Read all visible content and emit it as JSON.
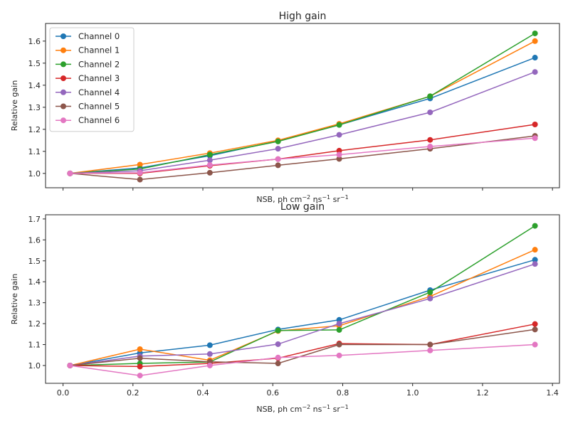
{
  "chart_data": [
    {
      "type": "line",
      "title": "High gain",
      "xlabel": "NSB, ph cm⁻² ns⁻¹ sr⁻¹",
      "ylabel": "Relative gain",
      "xlim": [
        -0.05,
        1.42
      ],
      "ylim": [
        0.935,
        1.68
      ],
      "xticks": [
        0.0,
        0.2,
        0.4,
        0.6,
        0.8,
        1.0,
        1.2,
        1.4
      ],
      "xtick_labels_shown": false,
      "yticks": [
        1.0,
        1.1,
        1.2,
        1.3,
        1.4,
        1.5,
        1.6
      ],
      "ytick_labels": [
        "1.0",
        "1.1",
        "1.2",
        "1.3",
        "1.4",
        "1.5",
        "1.6"
      ],
      "grid": false,
      "legend_position": "top-left",
      "x": [
        0.02,
        0.22,
        0.42,
        0.615,
        0.79,
        1.05,
        1.35
      ],
      "series": [
        {
          "name": "Channel 0",
          "color": "#1f77b4",
          "values": [
            1.0,
            1.025,
            1.08,
            1.147,
            1.22,
            1.34,
            1.525
          ]
        },
        {
          "name": "Channel 1",
          "color": "#ff7f0e",
          "values": [
            1.0,
            1.04,
            1.092,
            1.15,
            1.225,
            1.35,
            1.6
          ]
        },
        {
          "name": "Channel 2",
          "color": "#2ca02c",
          "values": [
            1.0,
            1.02,
            1.085,
            1.145,
            1.22,
            1.35,
            1.635
          ]
        },
        {
          "name": "Channel 3",
          "color": "#d62728",
          "values": [
            1.0,
            1.0,
            1.035,
            1.065,
            1.103,
            1.152,
            1.222
          ]
        },
        {
          "name": "Channel 4",
          "color": "#9467bd",
          "values": [
            1.0,
            1.012,
            1.06,
            1.112,
            1.175,
            1.277,
            1.46
          ]
        },
        {
          "name": "Channel 5",
          "color": "#8c564b",
          "values": [
            1.0,
            0.972,
            1.003,
            1.037,
            1.066,
            1.112,
            1.17
          ]
        },
        {
          "name": "Channel 6",
          "color": "#e377c2",
          "values": [
            1.0,
            1.003,
            1.038,
            1.065,
            1.085,
            1.122,
            1.16
          ]
        }
      ]
    },
    {
      "type": "line",
      "title": "Low gain",
      "xlabel": "NSB, ph cm⁻² ns⁻¹ sr⁻¹",
      "ylabel": "Relative gain",
      "xlim": [
        -0.05,
        1.42
      ],
      "ylim": [
        0.915,
        1.72
      ],
      "xticks": [
        0.0,
        0.2,
        0.4,
        0.6,
        0.8,
        1.0,
        1.2,
        1.4
      ],
      "xtick_labels": [
        "0.0",
        "0.2",
        "0.4",
        "0.6",
        "0.8",
        "1.0",
        "1.2",
        "1.4"
      ],
      "yticks": [
        1.0,
        1.1,
        1.2,
        1.3,
        1.4,
        1.5,
        1.6,
        1.7
      ],
      "ytick_labels": [
        "1.0",
        "1.1",
        "1.2",
        "1.3",
        "1.4",
        "1.5",
        "1.6",
        "1.7"
      ],
      "grid": false,
      "x": [
        0.02,
        0.22,
        0.42,
        0.615,
        0.79,
        1.05,
        1.35
      ],
      "series": [
        {
          "name": "Channel 0",
          "color": "#1f77b4",
          "values": [
            1.0,
            1.06,
            1.097,
            1.172,
            1.218,
            1.36,
            1.505
          ]
        },
        {
          "name": "Channel 1",
          "color": "#ff7f0e",
          "values": [
            1.0,
            1.078,
            1.025,
            1.165,
            1.19,
            1.33,
            1.553
          ]
        },
        {
          "name": "Channel 2",
          "color": "#2ca02c",
          "values": [
            1.0,
            1.01,
            1.017,
            1.167,
            1.17,
            1.35,
            1.667
          ]
        },
        {
          "name": "Channel 3",
          "color": "#d62728",
          "values": [
            1.0,
            0.995,
            1.01,
            1.035,
            1.105,
            1.1,
            1.198
          ]
        },
        {
          "name": "Channel 4",
          "color": "#9467bd",
          "values": [
            1.0,
            1.045,
            1.055,
            1.102,
            1.2,
            1.32,
            1.485
          ]
        },
        {
          "name": "Channel 5",
          "color": "#8c564b",
          "values": [
            1.0,
            1.035,
            1.018,
            1.01,
            1.1,
            1.1,
            1.172
          ]
        },
        {
          "name": "Channel 6",
          "color": "#e377c2",
          "values": [
            1.0,
            0.952,
            1.0,
            1.038,
            1.048,
            1.072,
            1.1
          ]
        }
      ]
    }
  ]
}
